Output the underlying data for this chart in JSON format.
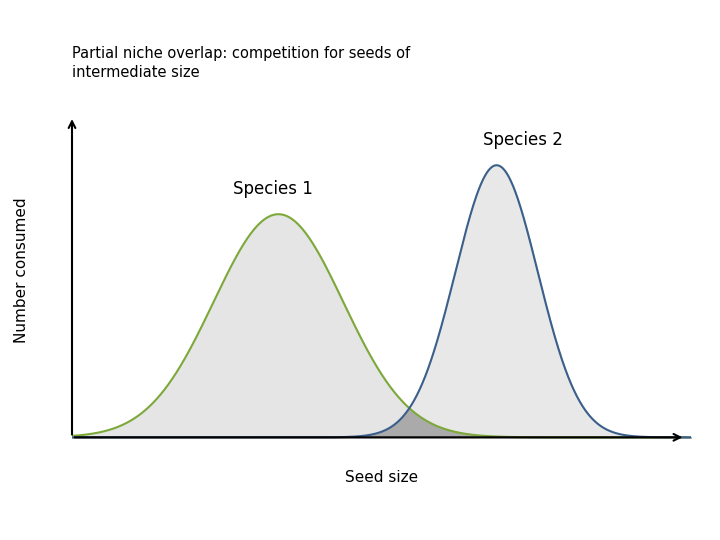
{
  "title_line1": "Partial niche overlap: competition for seeds of",
  "title_line2": "intermediate size",
  "xlabel": "Seed size",
  "ylabel": "Number consumed",
  "species1_label": "Species 1",
  "species2_label": "Species 2",
  "sp1_mean": 3.5,
  "sp1_std": 1.1,
  "sp1_amplitude": 0.82,
  "sp2_mean": 7.2,
  "sp2_std": 0.7,
  "sp2_amplitude": 1.0,
  "sp1_color": "#7da83a",
  "sp2_color": "#3a5f8a",
  "sp1_fill": "#e5e5e5",
  "sp2_fill": "#e8e8e8",
  "overlap_fill": "#aaaaaa",
  "header_bar1_color": "#a8cfe0",
  "header_bar2_color": "#c0d878",
  "background_color": "#ffffff",
  "x_min": 0.0,
  "x_max": 10.5
}
